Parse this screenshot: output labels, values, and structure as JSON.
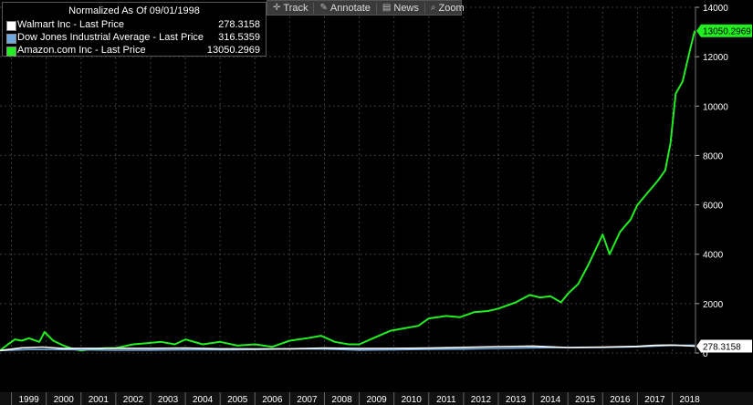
{
  "legend": {
    "header": "Normalized As Of 09/01/1998",
    "items": [
      {
        "label": "Walmart Inc - Last Price",
        "value": "278.3158",
        "color": "#ffffff"
      },
      {
        "label": "Dow Jones Industrial Average - Last Price",
        "value": "316.5359",
        "color": "#6fa8dc"
      },
      {
        "label": "Amazon.com Inc - Last Price",
        "value": "13050.2969",
        "color": "#22ee22"
      }
    ]
  },
  "toolbar": {
    "buttons": [
      {
        "label": "Track",
        "icon": "crosshair-icon"
      },
      {
        "label": "Annotate",
        "icon": "pencil-icon"
      },
      {
        "label": "News",
        "icon": "newspaper-icon"
      },
      {
        "label": "Zoom",
        "icon": "magnifier-icon"
      }
    ]
  },
  "chart_data": {
    "type": "line",
    "title": "",
    "xlabel": "",
    "ylabel": "",
    "ylim": [
      0,
      14000
    ],
    "yticks": [
      0,
      2000,
      4000,
      6000,
      8000,
      10000,
      12000,
      14000
    ],
    "xlim": [
      1998.67,
      2018.67
    ],
    "xticks": [
      "1999",
      "2000",
      "2001",
      "2002",
      "2003",
      "2004",
      "2005",
      "2006",
      "2007",
      "2008",
      "2009",
      "2010",
      "2011",
      "2012",
      "2013",
      "2014",
      "2015",
      "2016",
      "2017",
      "2018"
    ],
    "grid": true,
    "legend_position": "top-left",
    "last_value_labels": [
      "13050.2969",
      "278.3158"
    ],
    "series": [
      {
        "name": "Amazon.com Inc - Last Price",
        "color": "#22ee22",
        "x": [
          1998.67,
          1998.9,
          1999.1,
          1999.3,
          1999.5,
          1999.8,
          1999.95,
          2000.2,
          2000.5,
          2000.8,
          2001.0,
          2001.3,
          2001.7,
          2002.0,
          2002.5,
          2002.9,
          2003.3,
          2003.7,
          2004.0,
          2004.5,
          2005.0,
          2005.5,
          2006.0,
          2006.5,
          2007.0,
          2007.5,
          2007.9,
          2008.3,
          2008.7,
          2009.0,
          2009.4,
          2009.9,
          2010.3,
          2010.7,
          2011.0,
          2011.5,
          2011.9,
          2012.3,
          2012.7,
          2013.0,
          2013.5,
          2013.9,
          2014.2,
          2014.5,
          2014.8,
          2015.0,
          2015.3,
          2015.6,
          2015.9,
          2016.0,
          2016.2,
          2016.5,
          2016.8,
          2017.0,
          2017.3,
          2017.6,
          2017.8,
          2017.95,
          2018.1,
          2018.3,
          2018.5,
          2018.65
        ],
        "values": [
          100,
          350,
          550,
          500,
          600,
          450,
          850,
          500,
          300,
          150,
          100,
          150,
          200,
          200,
          350,
          400,
          450,
          350,
          550,
          350,
          450,
          300,
          350,
          250,
          500,
          600,
          700,
          450,
          350,
          350,
          600,
          900,
          1000,
          1100,
          1400,
          1500,
          1450,
          1650,
          1700,
          1800,
          2050,
          2350,
          2250,
          2300,
          2050,
          2400,
          2800,
          3600,
          4500,
          4800,
          4000,
          4900,
          5400,
          6000,
          6500,
          7000,
          7400,
          8500,
          10500,
          11000,
          12200,
          13050
        ]
      },
      {
        "name": "Dow Jones Industrial Average - Last Price",
        "color": "#6fa8dc",
        "x": [
          1998.67,
          1999.5,
          2000.0,
          2001.0,
          2002.0,
          2003.0,
          2004.0,
          2005.0,
          2006.0,
          2007.0,
          2008.0,
          2009.0,
          2010.0,
          2011.0,
          2012.0,
          2013.0,
          2014.0,
          2015.0,
          2016.0,
          2017.0,
          2017.5,
          2018.0,
          2018.65
        ],
        "values": [
          100,
          140,
          140,
          130,
          110,
          120,
          130,
          130,
          140,
          170,
          160,
          120,
          130,
          150,
          160,
          185,
          210,
          220,
          220,
          250,
          280,
          310,
          316
        ]
      },
      {
        "name": "Walmart Inc - Last Price",
        "color": "#ffffff",
        "x": [
          1998.67,
          1999.3,
          1999.9,
          2000.5,
          2001.0,
          2002.0,
          2003.0,
          2004.0,
          2005.0,
          2006.0,
          2007.0,
          2008.0,
          2009.0,
          2010.0,
          2011.0,
          2012.0,
          2013.0,
          2014.0,
          2015.0,
          2016.0,
          2017.0,
          2017.5,
          2018.0,
          2018.65
        ],
        "values": [
          100,
          210,
          240,
          180,
          190,
          190,
          190,
          200,
          170,
          165,
          170,
          200,
          180,
          190,
          200,
          230,
          260,
          280,
          220,
          240,
          270,
          310,
          320,
          278
        ]
      }
    ]
  }
}
